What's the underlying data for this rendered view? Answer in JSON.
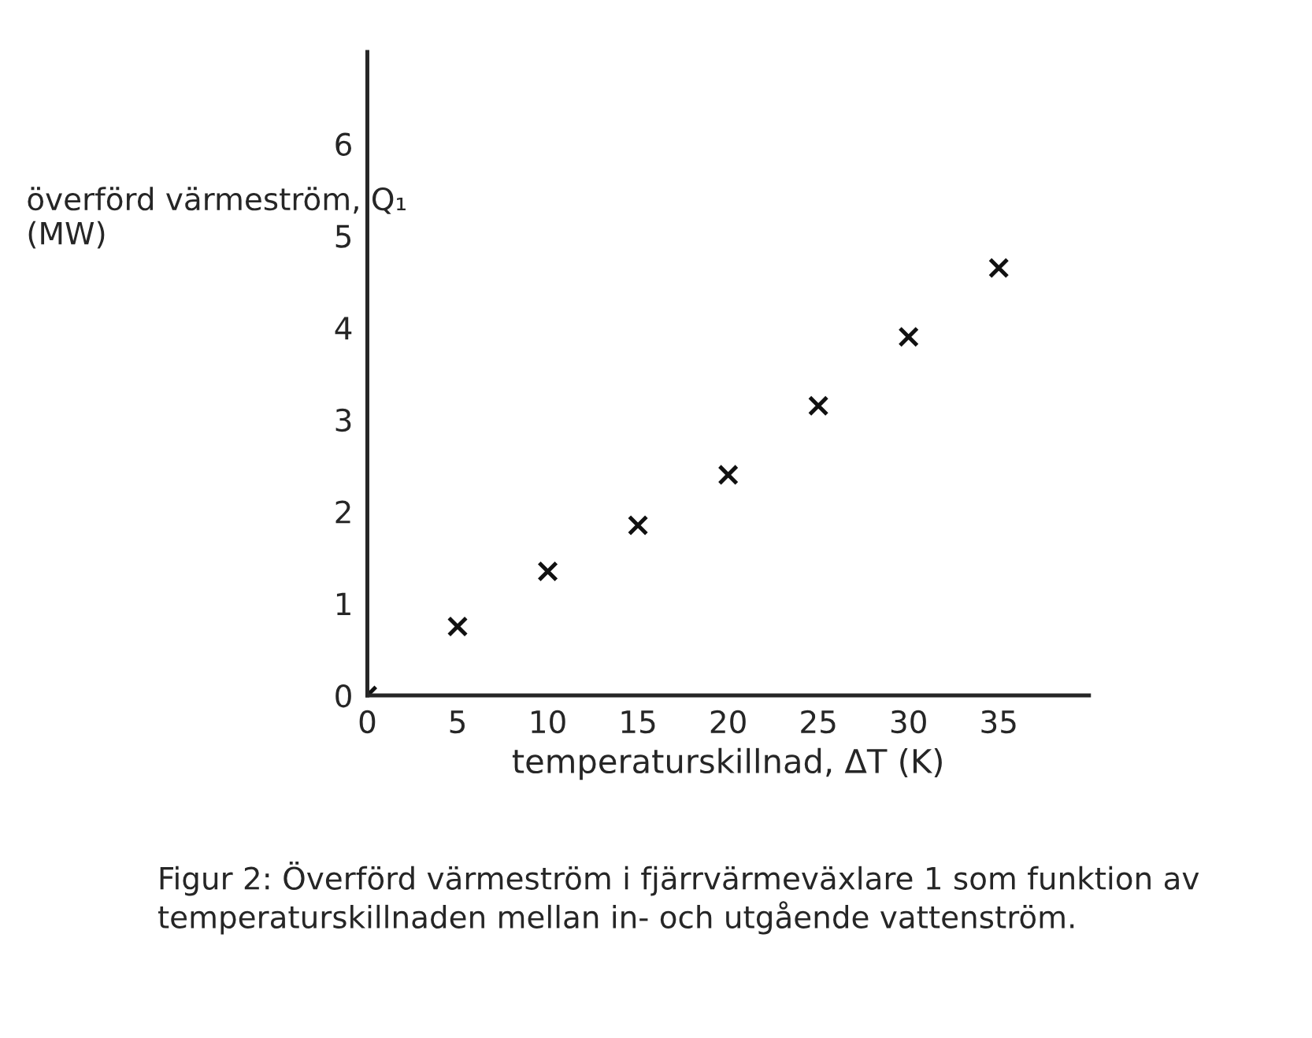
{
  "chart_data": {
    "type": "scatter",
    "xlabel": "temperaturskillnad, ΔT (K)",
    "ylabel": "överförd värmeström, Q₁ (MW)",
    "x": [
      0,
      5,
      10,
      15,
      20,
      25,
      30,
      35
    ],
    "series": [
      {
        "color": "#111111",
        "values": [
          0,
          0.75,
          1.35,
          1.85,
          2.4,
          3.15,
          3.9,
          4.65
        ]
      }
    ],
    "marker": "cross",
    "xlim": [
      0,
      40
    ],
    "ylim": [
      0,
      7
    ],
    "xticks": [
      0,
      5,
      10,
      15,
      20,
      25,
      30,
      35
    ],
    "yticks": [
      0,
      1,
      2,
      3,
      4,
      5,
      6
    ],
    "grid": false,
    "legend": false,
    "annotations": [
      "Figur 2: Överförd värmeström i fjärrvärmeväxlare 1 som funktion av temperaturskillnaden mellan in- och utgående vattenström."
    ]
  }
}
